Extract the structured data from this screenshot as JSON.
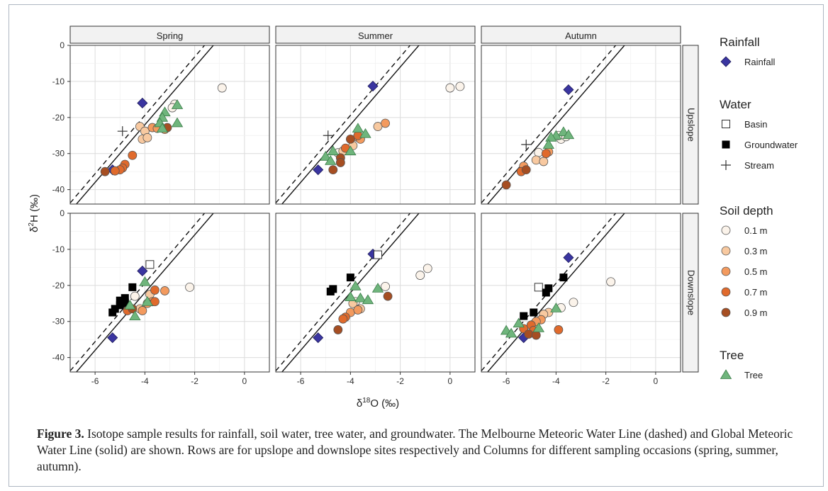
{
  "figure": {
    "caption_label": "Figure 3.",
    "caption_text": " Isotope sample results for rainfall, soil water, tree water, and groundwater. The Melbourne Meteoric Water Line (dashed) and Global Meteoric Water Line (solid) are shown. Rows are for upslope and downslope sites respectively and Columns for different sampling occasions (spring, summer, autumn)."
  },
  "chart_data": {
    "type": "scatter",
    "xlabel": "δ18O (‰)",
    "ylabel": "δ2H (‰)",
    "xlim": [
      -7,
      1
    ],
    "ylim": [
      -44,
      0
    ],
    "xticks": [
      -6,
      -4,
      -2,
      0
    ],
    "yticks": [
      0,
      -10,
      -20,
      -30,
      -40
    ],
    "grid": true,
    "columns": [
      "Spring",
      "Summer",
      "Autumn"
    ],
    "rows": [
      "Upslope",
      "Downslope"
    ],
    "reference_lines": [
      {
        "name": "Melbourne Meteoric Water Line",
        "style": "dashed",
        "slope": 8.1,
        "intercept": 13
      },
      {
        "name": "Global Meteoric Water Line",
        "style": "solid",
        "slope": 8,
        "intercept": 10
      }
    ],
    "colors": {
      "Rainfall": "#3a35a0",
      "Groundwater": "#000000",
      "Tree": "#6fb57c",
      "0.1 m": "#fbf3ea",
      "0.3 m": "#f8c9a0",
      "0.5 m": "#f39a5e",
      "0.7 m": "#e06a2c",
      "0.9 m": "#a64e22"
    },
    "legend": [
      {
        "title": "Rainfall",
        "items": [
          {
            "label": "Rainfall",
            "shape": "diamond",
            "category": "Rainfall"
          }
        ]
      },
      {
        "title": "Water",
        "items": [
          {
            "label": "Basin",
            "shape": "open-square",
            "category": "Basin"
          },
          {
            "label": "Groundwater",
            "shape": "square",
            "category": "Groundwater"
          },
          {
            "label": "Stream",
            "shape": "plus",
            "category": "Stream"
          }
        ]
      },
      {
        "title": "Soil depth",
        "items": [
          {
            "label": "0.1 m",
            "shape": "circle",
            "category": "0.1 m"
          },
          {
            "label": "0.3 m",
            "shape": "circle",
            "category": "0.3 m"
          },
          {
            "label": "0.5 m",
            "shape": "circle",
            "category": "0.5 m"
          },
          {
            "label": "0.7 m",
            "shape": "circle",
            "category": "0.7 m"
          },
          {
            "label": "0.9 m",
            "shape": "circle",
            "category": "0.9 m"
          }
        ]
      },
      {
        "title": "Tree",
        "items": [
          {
            "label": "Tree",
            "shape": "triangle",
            "category": "Tree"
          }
        ]
      }
    ],
    "panels": [
      {
        "column": "Spring",
        "row": "Upslope",
        "points": [
          {
            "category": "Rainfall",
            "x": -4.1,
            "y": -16
          },
          {
            "category": "Rainfall",
            "x": -5.3,
            "y": -34.5
          },
          {
            "category": "Stream",
            "x": -4.9,
            "y": -23.8
          },
          {
            "category": "0.1 m",
            "x": -0.9,
            "y": -11.8
          },
          {
            "category": "0.1 m",
            "x": -2.8,
            "y": -16.3
          },
          {
            "category": "0.1 m",
            "x": -2.9,
            "y": -17.3
          },
          {
            "category": "0.3 m",
            "x": -4.2,
            "y": -22.5
          },
          {
            "category": "0.3 m",
            "x": -4.0,
            "y": -23.8
          },
          {
            "category": "0.3 m",
            "x": -4.1,
            "y": -26
          },
          {
            "category": "0.3 m",
            "x": -3.9,
            "y": -25.6
          },
          {
            "category": "0.5 m",
            "x": -3.7,
            "y": -22.8
          },
          {
            "category": "0.5 m",
            "x": -3.5,
            "y": -23
          },
          {
            "category": "0.5 m",
            "x": -3.2,
            "y": -23.3
          },
          {
            "category": "0.7 m",
            "x": -4.5,
            "y": -30.5
          },
          {
            "category": "0.7 m",
            "x": -4.8,
            "y": -33
          },
          {
            "category": "0.7 m",
            "x": -4.9,
            "y": -34
          },
          {
            "category": "0.7 m",
            "x": -5.0,
            "y": -34.5
          },
          {
            "category": "0.7 m",
            "x": -5.2,
            "y": -34.8
          },
          {
            "category": "0.9 m",
            "x": -5.6,
            "y": -35
          },
          {
            "category": "0.9 m",
            "x": -3.1,
            "y": -22.8
          },
          {
            "category": "Tree",
            "x": -3.2,
            "y": -18.5
          },
          {
            "category": "Tree",
            "x": -3.3,
            "y": -20
          },
          {
            "category": "Tree",
            "x": -2.7,
            "y": -16.5
          },
          {
            "category": "Tree",
            "x": -2.7,
            "y": -21.5
          },
          {
            "category": "Tree",
            "x": -3.4,
            "y": -21.5
          },
          {
            "category": "Tree",
            "x": -3.3,
            "y": -23
          }
        ]
      },
      {
        "column": "Summer",
        "row": "Upslope",
        "points": [
          {
            "category": "Rainfall",
            "x": -3.1,
            "y": -11.3
          },
          {
            "category": "Rainfall",
            "x": -5.3,
            "y": -34.5
          },
          {
            "category": "Stream",
            "x": -4.9,
            "y": -25
          },
          {
            "category": "0.1 m",
            "x": 0.0,
            "y": -11.8
          },
          {
            "category": "0.1 m",
            "x": 0.4,
            "y": -11.4
          },
          {
            "category": "0.1 m",
            "x": -4.5,
            "y": -29.8
          },
          {
            "category": "0.3 m",
            "x": -2.9,
            "y": -22.5
          },
          {
            "category": "0.3 m",
            "x": -3.9,
            "y": -27.8
          },
          {
            "category": "0.3 m",
            "x": -4.3,
            "y": -29.3
          },
          {
            "category": "0.5 m",
            "x": -2.6,
            "y": -21.6
          },
          {
            "category": "0.5 m",
            "x": -3.7,
            "y": -25.5
          },
          {
            "category": "0.5 m",
            "x": -3.6,
            "y": -26
          },
          {
            "category": "0.7 m",
            "x": -4.2,
            "y": -28.5
          },
          {
            "category": "0.7 m",
            "x": -3.7,
            "y": -25
          },
          {
            "category": "0.9 m",
            "x": -4.0,
            "y": -26
          },
          {
            "category": "0.9 m",
            "x": -4.4,
            "y": -31.2
          },
          {
            "category": "0.9 m",
            "x": -4.7,
            "y": -34.5
          },
          {
            "category": "0.9 m",
            "x": -4.4,
            "y": -32.5
          },
          {
            "category": "Tree",
            "x": -3.7,
            "y": -23
          },
          {
            "category": "Tree",
            "x": -3.4,
            "y": -24.5
          },
          {
            "category": "Tree",
            "x": -4.0,
            "y": -29.3
          },
          {
            "category": "Tree",
            "x": -4.7,
            "y": -29.3
          },
          {
            "category": "Tree",
            "x": -5.0,
            "y": -30.8
          },
          {
            "category": "Tree",
            "x": -4.8,
            "y": -32
          }
        ]
      },
      {
        "column": "Autumn",
        "row": "Upslope",
        "points": [
          {
            "category": "Rainfall",
            "x": -3.5,
            "y": -12.3
          },
          {
            "category": "Rainfall",
            "x": -5.3,
            "y": -34.5
          },
          {
            "category": "Stream",
            "x": -5.2,
            "y": -27.5
          },
          {
            "category": "0.1 m",
            "x": -3.8,
            "y": -26
          },
          {
            "category": "0.1 m",
            "x": -3.9,
            "y": -25
          },
          {
            "category": "0.1 m",
            "x": -3.6,
            "y": -25.3
          },
          {
            "category": "0.1 m",
            "x": -4.7,
            "y": -29.7
          },
          {
            "category": "0.3 m",
            "x": -4.8,
            "y": -31.8
          },
          {
            "category": "0.3 m",
            "x": -4.5,
            "y": -32.2
          },
          {
            "category": "0.5 m",
            "x": -4.3,
            "y": -29.5
          },
          {
            "category": "0.5 m",
            "x": -5.3,
            "y": -33.5
          },
          {
            "category": "0.7 m",
            "x": -4.4,
            "y": -30
          },
          {
            "category": "0.7 m",
            "x": -5.4,
            "y": -35
          },
          {
            "category": "0.9 m",
            "x": -5.2,
            "y": -34.5
          },
          {
            "category": "0.9 m",
            "x": -6.0,
            "y": -38.7
          },
          {
            "category": "Tree",
            "x": -3.7,
            "y": -24
          },
          {
            "category": "Tree",
            "x": -3.5,
            "y": -24.8
          },
          {
            "category": "Tree",
            "x": -4.0,
            "y": -25
          },
          {
            "category": "Tree",
            "x": -4.2,
            "y": -25.5
          },
          {
            "category": "Tree",
            "x": -4.3,
            "y": -27.5
          }
        ]
      },
      {
        "column": "Spring",
        "row": "Downslope",
        "points": [
          {
            "category": "Rainfall",
            "x": -4.1,
            "y": -16
          },
          {
            "category": "Rainfall",
            "x": -5.3,
            "y": -34.5
          },
          {
            "category": "Basin",
            "x": -3.8,
            "y": -14.2
          },
          {
            "category": "Groundwater",
            "x": -4.5,
            "y": -20.5
          },
          {
            "category": "Groundwater",
            "x": -4.8,
            "y": -23.5
          },
          {
            "category": "Groundwater",
            "x": -4.9,
            "y": -24.5
          },
          {
            "category": "Groundwater",
            "x": -4.9,
            "y": -25
          },
          {
            "category": "Groundwater",
            "x": -5.0,
            "y": -25.5
          },
          {
            "category": "Groundwater",
            "x": -5.0,
            "y": -24.2
          },
          {
            "category": "Groundwater",
            "x": -4.8,
            "y": -24.8
          },
          {
            "category": "Groundwater",
            "x": -5.2,
            "y": -26.5
          },
          {
            "category": "Groundwater",
            "x": -5.3,
            "y": -27.5
          },
          {
            "category": "0.1 m",
            "x": -2.2,
            "y": -20.5
          },
          {
            "category": "0.1 m",
            "x": -4.4,
            "y": -23
          },
          {
            "category": "0.3 m",
            "x": -4.2,
            "y": -26.5
          },
          {
            "category": "0.3 m",
            "x": -3.8,
            "y": -22.5
          },
          {
            "category": "0.5 m",
            "x": -3.2,
            "y": -21.5
          },
          {
            "category": "0.5 m",
            "x": -3.7,
            "y": -24.5
          },
          {
            "category": "0.5 m",
            "x": -4.1,
            "y": -27
          },
          {
            "category": "0.5 m",
            "x": -3.9,
            "y": -25
          },
          {
            "category": "0.7 m",
            "x": -3.6,
            "y": -21.3
          },
          {
            "category": "0.7 m",
            "x": -4.7,
            "y": -27
          },
          {
            "category": "0.7 m",
            "x": -3.6,
            "y": -24.5
          },
          {
            "category": "0.9 m",
            "x": -4.5,
            "y": -26.5
          },
          {
            "category": "Tree",
            "x": -4.0,
            "y": -19
          },
          {
            "category": "Tree",
            "x": -3.9,
            "y": -24.5
          },
          {
            "category": "Tree",
            "x": -4.4,
            "y": -28.5
          },
          {
            "category": "Tree",
            "x": -4.6,
            "y": -25.5
          }
        ]
      },
      {
        "column": "Summer",
        "row": "Downslope",
        "points": [
          {
            "category": "Rainfall",
            "x": -3.1,
            "y": -11.3
          },
          {
            "category": "Rainfall",
            "x": -5.3,
            "y": -34.5
          },
          {
            "category": "Basin",
            "x": -2.9,
            "y": -11.5
          },
          {
            "category": "Groundwater",
            "x": -4.0,
            "y": -17.8
          },
          {
            "category": "Groundwater",
            "x": -4.7,
            "y": -21
          },
          {
            "category": "Groundwater",
            "x": -4.8,
            "y": -21.7
          },
          {
            "category": "0.1 m",
            "x": -1.2,
            "y": -17.2
          },
          {
            "category": "0.1 m",
            "x": -0.9,
            "y": -15.3
          },
          {
            "category": "0.1 m",
            "x": -2.6,
            "y": -20.3
          },
          {
            "category": "0.1 m",
            "x": -3.8,
            "y": -24.5
          },
          {
            "category": "0.3 m",
            "x": -3.6,
            "y": -26.5
          },
          {
            "category": "0.3 m",
            "x": -3.9,
            "y": -25
          },
          {
            "category": "0.5 m",
            "x": -4.0,
            "y": -27.5
          },
          {
            "category": "0.5 m",
            "x": -3.7,
            "y": -26.8
          },
          {
            "category": "0.7 m",
            "x": -4.2,
            "y": -28.8
          },
          {
            "category": "0.7 m",
            "x": -4.3,
            "y": -29.3
          },
          {
            "category": "0.9 m",
            "x": -4.5,
            "y": -32.3
          },
          {
            "category": "0.9 m",
            "x": -2.5,
            "y": -23
          },
          {
            "category": "Tree",
            "x": -2.9,
            "y": -20.8
          },
          {
            "category": "Tree",
            "x": -3.8,
            "y": -20.2
          },
          {
            "category": "Tree",
            "x": -4.0,
            "y": -23.2
          },
          {
            "category": "Tree",
            "x": -3.6,
            "y": -23.5
          },
          {
            "category": "Tree",
            "x": -3.3,
            "y": -24
          }
        ]
      },
      {
        "column": "Autumn",
        "row": "Downslope",
        "points": [
          {
            "category": "Rainfall",
            "x": -3.5,
            "y": -12.3
          },
          {
            "category": "Rainfall",
            "x": -5.3,
            "y": -34.5
          },
          {
            "category": "Basin",
            "x": -4.7,
            "y": -20.5
          },
          {
            "category": "Groundwater",
            "x": -3.7,
            "y": -17.8
          },
          {
            "category": "Groundwater",
            "x": -4.3,
            "y": -20.8
          },
          {
            "category": "Groundwater",
            "x": -4.4,
            "y": -22
          },
          {
            "category": "Groundwater",
            "x": -4.9,
            "y": -27.5
          },
          {
            "category": "Groundwater",
            "x": -5.3,
            "y": -28.5
          },
          {
            "category": "0.1 m",
            "x": -1.8,
            "y": -19
          },
          {
            "category": "0.1 m",
            "x": -3.3,
            "y": -24.7
          },
          {
            "category": "0.1 m",
            "x": -3.8,
            "y": -26.2
          },
          {
            "category": "0.3 m",
            "x": -4.3,
            "y": -27.5
          },
          {
            "category": "0.3 m",
            "x": -4.5,
            "y": -28
          },
          {
            "category": "0.5 m",
            "x": -4.6,
            "y": -29.5
          },
          {
            "category": "0.5 m",
            "x": -4.8,
            "y": -30
          },
          {
            "category": "0.7 m",
            "x": -3.9,
            "y": -32.3
          },
          {
            "category": "0.7 m",
            "x": -5.0,
            "y": -31
          },
          {
            "category": "0.7 m",
            "x": -5.3,
            "y": -32
          },
          {
            "category": "0.7 m",
            "x": -4.9,
            "y": -32.5
          },
          {
            "category": "0.9 m",
            "x": -5.1,
            "y": -33.5
          },
          {
            "category": "0.9 m",
            "x": -4.8,
            "y": -33.8
          },
          {
            "category": "Tree",
            "x": -6.0,
            "y": -32.5
          },
          {
            "category": "Tree",
            "x": -5.8,
            "y": -33.3
          },
          {
            "category": "Tree",
            "x": -5.5,
            "y": -30.5
          },
          {
            "category": "Tree",
            "x": -4.7,
            "y": -31.8
          },
          {
            "category": "Tree",
            "x": -4.0,
            "y": -26.3
          }
        ]
      }
    ]
  }
}
